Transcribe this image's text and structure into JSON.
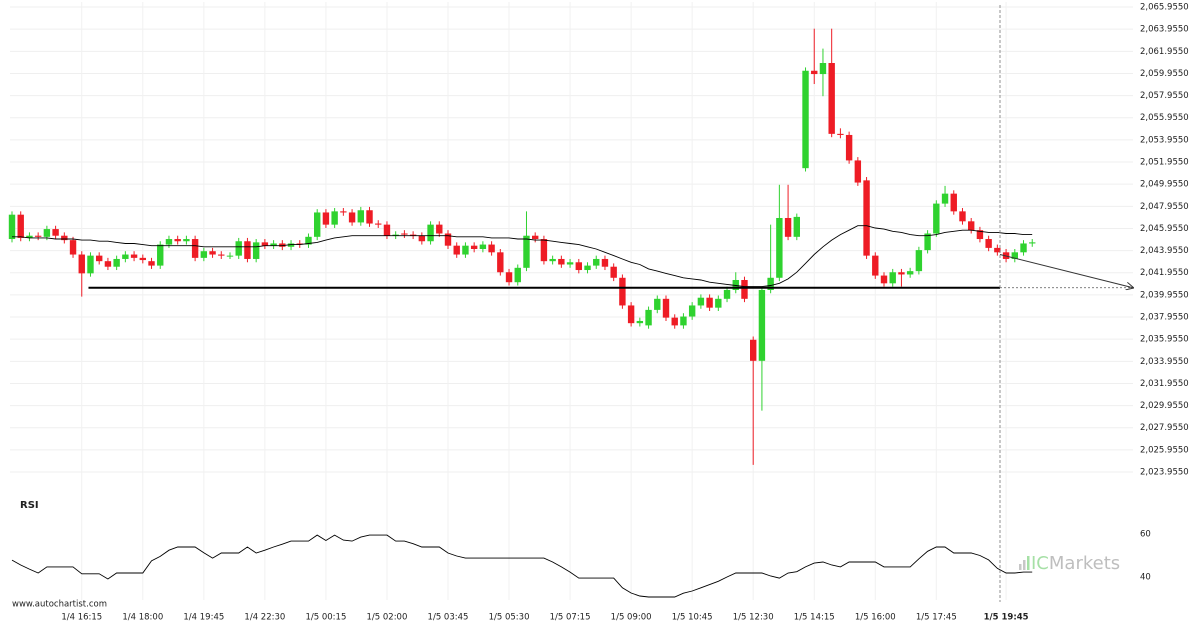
{
  "chart_data": [
    {
      "type": "candlestick",
      "categories": [
        null,
        null,
        null,
        null,
        null,
        null,
        null,
        null,
        "1/4 16:15",
        null,
        null,
        null,
        null,
        null,
        null,
        "1/4 18:00",
        null,
        null,
        null,
        null,
        null,
        null,
        "1/4 19:45",
        null,
        null,
        null,
        null,
        null,
        null,
        "1/4 22:30",
        null,
        null,
        null,
        null,
        null,
        null,
        "1/5 00:15",
        null,
        null,
        null,
        null,
        null,
        null,
        "1/5 02:00",
        null,
        null,
        null,
        null,
        null,
        null,
        "1/5 03:45",
        null,
        null,
        null,
        null,
        null,
        null,
        "1/5 05:30",
        null,
        null,
        null,
        null,
        null,
        null,
        "1/5 07:15",
        null,
        null,
        null,
        null,
        null,
        null,
        "1/5 09:00",
        null,
        null,
        null,
        null,
        null,
        null,
        "1/5 10:45",
        null,
        null,
        null,
        null,
        null,
        null,
        "1/5 12:30",
        null,
        null,
        null,
        null,
        null,
        null,
        "1/5 14:15",
        null,
        null,
        null,
        null,
        null,
        null,
        "1/5 16:00",
        null,
        null,
        null,
        null,
        null,
        null,
        "1/5 17:45",
        null,
        null,
        null,
        null,
        null,
        null,
        null,
        "1/5 19:45",
        null,
        null,
        null
      ],
      "open": [
        2045.0,
        2047.2,
        2045.1,
        2045.3,
        2045.2,
        2045.9,
        2045.3,
        2044.9,
        2043.6,
        2041.9,
        2043.5,
        2043.0,
        2042.5,
        2043.2,
        2043.6,
        2043.3,
        2043.0,
        2042.6,
        2044.5,
        2045.0,
        2044.8,
        2045.0,
        2043.3,
        2043.9,
        2043.6,
        2043.5,
        2043.5,
        2044.8,
        2043.2,
        2044.7,
        2044.4,
        2044.6,
        2044.3,
        2044.6,
        2044.5,
        2045.2,
        2047.4,
        2046.3,
        2047.5,
        2047.4,
        2046.5,
        2047.6,
        2046.4,
        2046.3,
        2045.3,
        2045.5,
        2045.4,
        2045.3,
        2044.8,
        2046.3,
        2045.5,
        2044.4,
        2043.6,
        2044.4,
        2044.1,
        2044.5,
        2043.8,
        2042.0,
        2041.1,
        2042.4,
        2045.3,
        2045.0,
        2043.0,
        2043.2,
        2042.7,
        2042.9,
        2042.2,
        2042.6,
        2043.2,
        2042.5,
        2041.5,
        2039.0,
        2037.4,
        2037.2,
        2038.6,
        2039.6,
        2037.9,
        2037.2,
        2038.0,
        2039.0,
        2039.7,
        2038.8,
        2039.6,
        2040.4,
        2041.3,
        2035.9,
        2034.0,
        2040.4,
        2041.5,
        2046.9,
        2045.2,
        2051.4,
        2060.2,
        2059.9,
        2060.9,
        2054.5,
        2054.4,
        2052.1,
        2050.3,
        2043.5,
        2041.7,
        2041.0,
        2042.0,
        2041.8,
        2042.1,
        2044.0,
        2045.5,
        2048.2,
        2049.1,
        2047.5,
        2046.6,
        2045.8,
        2045.0,
        2044.2,
        2043.8,
        2043.2,
        2043.8,
        2044.6
      ],
      "high": [
        2047.5,
        2047.5,
        2045.6,
        2045.6,
        2046.2,
        2046.2,
        2045.6,
        2045.2,
        2043.9,
        2043.8,
        2043.8,
        2043.3,
        2043.5,
        2043.9,
        2043.9,
        2043.6,
        2043.3,
        2044.8,
        2045.3,
        2045.3,
        2045.3,
        2045.3,
        2044.2,
        2044.2,
        2043.9,
        2043.8,
        2045.1,
        2045.1,
        2045.0,
        2045.0,
        2044.9,
        2044.9,
        2044.9,
        2044.9,
        2045.5,
        2047.7,
        2047.7,
        2047.8,
        2047.8,
        2047.7,
        2047.9,
        2047.9,
        2046.7,
        2046.6,
        2045.7,
        2045.8,
        2045.7,
        2045.6,
        2046.6,
        2046.6,
        2045.8,
        2044.7,
        2044.7,
        2044.7,
        2044.8,
        2044.8,
        2044.1,
        2042.3,
        2042.7,
        2047.5,
        2045.6,
        2045.3,
        2043.5,
        2043.5,
        2043.2,
        2043.2,
        2042.9,
        2043.5,
        2043.5,
        2042.8,
        2041.8,
        2039.3,
        2037.9,
        2038.9,
        2039.9,
        2039.9,
        2038.2,
        2038.3,
        2039.3,
        2040.0,
        2040.0,
        2039.9,
        2040.7,
        2042.0,
        2041.6,
        2036.2,
        2040.7,
        2046.3,
        2049.9,
        2049.9,
        2047.3,
        2060.5,
        2064.0,
        2062.2,
        2064.0,
        2055.0,
        2054.7,
        2052.4,
        2050.6,
        2043.8,
        2042.0,
        2042.3,
        2042.3,
        2042.4,
        2044.3,
        2045.8,
        2048.5,
        2049.8,
        2049.4,
        2047.8,
        2046.9,
        2046.1,
        2045.3,
        2044.5,
        2044.1,
        2044.1,
        2044.9,
        2045.0
      ],
      "low": [
        2044.7,
        2044.8,
        2044.8,
        2044.9,
        2044.9,
        2045.0,
        2044.6,
        2043.3,
        2039.8,
        2041.6,
        2042.7,
        2042.2,
        2042.2,
        2042.9,
        2043.0,
        2042.8,
        2042.3,
        2042.3,
        2044.2,
        2044.5,
        2044.5,
        2043.0,
        2043.0,
        2043.3,
        2043.2,
        2043.2,
        2043.2,
        2042.9,
        2042.9,
        2044.1,
        2044.1,
        2044.0,
        2044.0,
        2044.2,
        2044.2,
        2044.9,
        2046.0,
        2046.0,
        2047.1,
        2046.2,
        2046.2,
        2046.1,
        2046.0,
        2045.0,
        2045.0,
        2045.1,
        2045.0,
        2044.5,
        2044.5,
        2045.2,
        2044.1,
        2043.3,
        2043.3,
        2043.8,
        2043.8,
        2043.5,
        2041.7,
        2040.8,
        2040.8,
        2042.1,
        2044.7,
        2042.7,
        2042.7,
        2042.4,
        2042.4,
        2041.9,
        2041.9,
        2042.3,
        2042.2,
        2041.2,
        2038.7,
        2037.1,
        2037.1,
        2036.9,
        2038.3,
        2037.6,
        2036.9,
        2036.9,
        2037.7,
        2038.7,
        2038.5,
        2038.5,
        2039.3,
        2040.1,
        2039.3,
        2024.6,
        2029.5,
        2040.1,
        2041.2,
        2044.9,
        2044.9,
        2051.1,
        2059.0,
        2057.9,
        2054.2,
        2054.1,
        2051.8,
        2049.8,
        2043.2,
        2041.4,
        2040.7,
        2040.7,
        2040.7,
        2041.5,
        2041.8,
        2043.7,
        2045.2,
        2047.9,
        2047.2,
        2046.3,
        2045.5,
        2044.7,
        2043.9,
        2043.5,
        2042.9,
        2042.9,
        2043.5,
        2044.3
      ],
      "close": [
        2047.2,
        2045.1,
        2045.3,
        2045.2,
        2045.9,
        2045.3,
        2044.9,
        2043.6,
        2041.9,
        2043.5,
        2043.0,
        2042.5,
        2043.2,
        2043.6,
        2043.3,
        2043.1,
        2042.6,
        2044.5,
        2045.0,
        2044.8,
        2045.0,
        2043.3,
        2043.9,
        2043.6,
        2043.5,
        2043.5,
        2044.8,
        2043.2,
        2044.7,
        2044.4,
        2044.6,
        2044.3,
        2044.6,
        2044.5,
        2045.2,
        2047.4,
        2046.3,
        2047.5,
        2047.4,
        2046.5,
        2047.6,
        2046.4,
        2046.3,
        2045.3,
        2045.4,
        2045.4,
        2045.3,
        2044.8,
        2046.3,
        2045.5,
        2044.4,
        2043.6,
        2044.4,
        2044.1,
        2044.5,
        2043.8,
        2042.0,
        2041.1,
        2042.4,
        2045.3,
        2045.0,
        2043.0,
        2043.2,
        2042.7,
        2042.9,
        2042.2,
        2042.6,
        2043.2,
        2042.5,
        2041.5,
        2039.0,
        2037.4,
        2037.6,
        2038.6,
        2039.6,
        2037.9,
        2037.2,
        2038.0,
        2039.0,
        2039.7,
        2038.8,
        2039.6,
        2040.4,
        2041.3,
        2039.6,
        2034.0,
        2040.4,
        2041.5,
        2046.9,
        2045.2,
        2047.0,
        2060.2,
        2059.9,
        2060.9,
        2054.5,
        2054.4,
        2052.1,
        2050.1,
        2043.5,
        2041.7,
        2041.0,
        2042.0,
        2041.8,
        2042.1,
        2044.0,
        2045.5,
        2048.2,
        2049.1,
        2047.5,
        2046.6,
        2045.8,
        2045.0,
        2044.2,
        2043.8,
        2043.2,
        2043.8,
        2044.6,
        2044.7
      ],
      "up_color": "#2fd22f",
      "down_color": "#ee1c25",
      "overlay": {
        "color": "#000000",
        "values": [
          2045.2,
          2045.2,
          2045.1,
          2045.1,
          2045.1,
          2045.0,
          2045.0,
          2045.0,
          2044.9,
          2044.9,
          2044.8,
          2044.8,
          2044.7,
          2044.6,
          2044.6,
          2044.5,
          2044.4,
          2044.4,
          2044.4,
          2044.4,
          2044.4,
          2044.4,
          2044.3,
          2044.3,
          2044.3,
          2044.3,
          2044.3,
          2044.3,
          2044.3,
          2044.4,
          2044.4,
          2044.4,
          2044.5,
          2044.5,
          2044.6,
          2044.7,
          2044.9,
          2045.1,
          2045.2,
          2045.3,
          2045.3,
          2045.3,
          2045.3,
          2045.3,
          2045.3,
          2045.3,
          2045.3,
          2045.3,
          2045.3,
          2045.3,
          2045.3,
          2045.2,
          2045.2,
          2045.2,
          2045.2,
          2045.1,
          2045.1,
          2045.1,
          2045.0,
          2045.0,
          2044.9,
          2044.9,
          2044.8,
          2044.7,
          2044.6,
          2044.5,
          2044.3,
          2044.1,
          2043.8,
          2043.5,
          2043.2,
          2042.9,
          2042.7,
          2042.3,
          2042.1,
          2041.9,
          2041.7,
          2041.5,
          2041.4,
          2041.3,
          2041.1,
          2041.0,
          2040.9,
          2040.8,
          2040.7,
          2040.7,
          2040.7,
          2040.8,
          2041.0,
          2041.4,
          2042.0,
          2042.8,
          2043.6,
          2044.3,
          2044.9,
          2045.4,
          2045.8,
          2046.2,
          2046.2,
          2046.0,
          2045.9,
          2045.7,
          2045.6,
          2045.4,
          2045.3,
          2045.3,
          2045.4,
          2045.6,
          2045.7,
          2045.8,
          2045.8,
          2045.7,
          2045.6,
          2045.6,
          2045.5,
          2045.5,
          2045.4,
          2045.4
        ]
      },
      "support_level": 2040.6,
      "projection": [
        2043.6,
        2040.6
      ],
      "ylim": [
        2023.0,
        2066.5
      ],
      "yticks": [
        {
          "value": 2065.955,
          "label": "2,065.9550"
        },
        {
          "value": 2063.955,
          "label": "2,063.9550"
        },
        {
          "value": 2061.955,
          "label": "2,061.9550"
        },
        {
          "value": 2059.955,
          "label": "2,059.9550"
        },
        {
          "value": 2057.955,
          "label": "2,057.9550"
        },
        {
          "value": 2055.955,
          "label": "2,055.9550"
        },
        {
          "value": 2053.955,
          "label": "2,053.9550"
        },
        {
          "value": 2051.955,
          "label": "2,051.9550"
        },
        {
          "value": 2049.955,
          "label": "2,049.9550"
        },
        {
          "value": 2047.955,
          "label": "2,047.9550"
        },
        {
          "value": 2045.955,
          "label": "2,045.9550"
        },
        {
          "value": 2043.955,
          "label": "2,043.9550"
        },
        {
          "value": 2041.955,
          "label": "2,041.9550"
        },
        {
          "value": 2039.955,
          "label": "2,039.9550"
        },
        {
          "value": 2037.955,
          "label": "2,037.9550"
        },
        {
          "value": 2035.955,
          "label": "2,035.9550"
        },
        {
          "value": 2033.955,
          "label": "2,033.9550"
        },
        {
          "value": 2031.955,
          "label": "2,031.9550"
        },
        {
          "value": 2029.955,
          "label": "2,029.9550"
        },
        {
          "value": 2027.955,
          "label": "2,027.9550"
        },
        {
          "value": 2025.955,
          "label": "2,025.9550"
        },
        {
          "value": 2023.955,
          "label": "2,023.9550"
        }
      ],
      "grid": true
    },
    {
      "type": "line",
      "title": "RSI",
      "color": "#000000",
      "values": [
        47.9,
        45.6,
        43.7,
        41.9,
        44.7,
        44.7,
        44.7,
        44.7,
        41.5,
        41.5,
        41.5,
        39.1,
        41.9,
        41.9,
        41.9,
        41.9,
        47.5,
        49.6,
        52.5,
        54.0,
        54.0,
        54.0,
        51.3,
        48.8,
        51.2,
        51.2,
        51.2,
        54.0,
        51.2,
        52.5,
        54.0,
        55.3,
        56.7,
        56.7,
        56.7,
        59.5,
        57.0,
        59.5,
        57.2,
        56.7,
        58.6,
        59.5,
        59.5,
        59.5,
        56.7,
        56.7,
        55.5,
        54.0,
        54.0,
        54.0,
        51.2,
        49.8,
        48.8,
        48.8,
        48.8,
        48.8,
        48.8,
        48.8,
        48.8,
        48.8,
        48.8,
        48.8,
        47.0,
        44.7,
        42.3,
        39.5,
        39.5,
        39.5,
        39.5,
        39.5,
        35.0,
        32.6,
        31.2,
        30.7,
        30.7,
        30.7,
        30.7,
        32.5,
        33.5,
        35.0,
        36.5,
        38.0,
        40.0,
        41.9,
        41.9,
        41.9,
        41.9,
        40.5,
        39.5,
        41.9,
        42.5,
        44.7,
        46.5,
        47.0,
        45.6,
        44.7,
        47.0,
        47.0,
        47.0,
        47.0,
        44.7,
        44.7,
        44.7,
        44.7,
        48.5,
        52.0,
        54.0,
        54.0,
        51.2,
        51.2,
        51.2,
        50.0,
        48.0,
        44.0,
        41.9,
        41.9,
        42.3,
        42.3
      ],
      "ylim": [
        25,
        67
      ],
      "yticks": [
        60,
        40
      ],
      "grid": false
    }
  ],
  "footer": "www.autochartist.com",
  "watermark": {
    "prefix": "IC",
    "suffix": "Markets"
  }
}
